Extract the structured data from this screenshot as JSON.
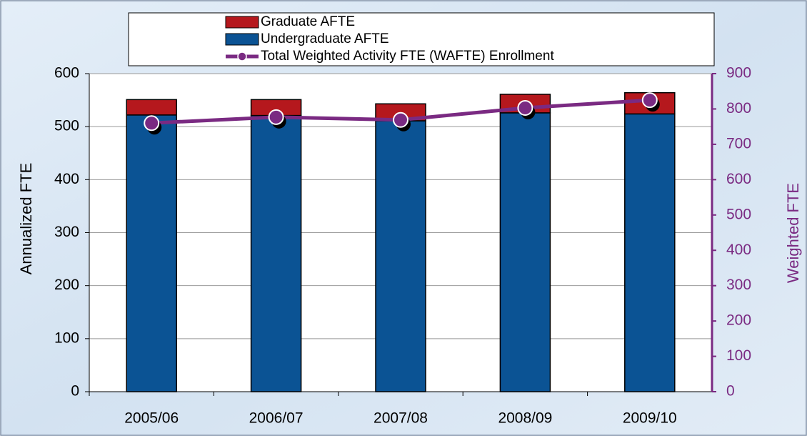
{
  "chart_data": {
    "type": "bar",
    "categories": [
      "2005/06",
      "2006/07",
      "2007/08",
      "2008/09",
      "2009/10"
    ],
    "series": [
      {
        "name": "Undergraduate AFTE",
        "color": "#0b5394",
        "values": [
          522,
          521,
          511,
          526,
          524
        ]
      },
      {
        "name": "Graduate AFTE",
        "color": "#b5181d",
        "values": [
          29,
          30,
          32,
          35,
          40
        ]
      },
      {
        "name": "Total Weighted Activity FTE (WAFTE) Enrollment",
        "color": "#7a2a82",
        "axis": "y2",
        "type": "line",
        "values": [
          760,
          777,
          769,
          803,
          825
        ]
      }
    ],
    "stacked": true,
    "ylabel": "Annualized FTE",
    "y2label": "Weighted FTE",
    "ylim": [
      0,
      600
    ],
    "yticks": [
      0,
      100,
      200,
      300,
      400,
      500,
      600
    ],
    "y2lim": [
      0,
      900
    ],
    "y2ticks": [
      0,
      100,
      200,
      300,
      400,
      500,
      600,
      700,
      800,
      900
    ],
    "grid": true,
    "legend": "top"
  }
}
